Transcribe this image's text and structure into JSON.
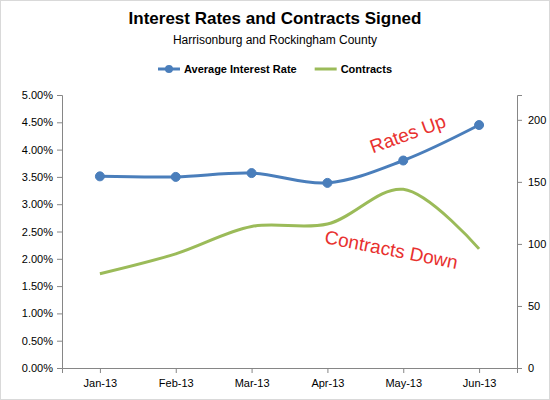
{
  "chart_data": {
    "type": "line",
    "title": "Interest Rates and Contracts Signed",
    "subtitle": "Harrisonburg and Rockingham County",
    "categories": [
      "Jan-13",
      "Feb-13",
      "Mar-13",
      "Apr-13",
      "May-13",
      "Jun-13"
    ],
    "series": [
      {
        "name": "Average Interest Rate",
        "color": "#4a7ebb",
        "values": [
          3.51,
          3.5,
          3.57,
          3.39,
          3.8,
          4.45
        ],
        "marker": "circle",
        "line_style": "smooth"
      },
      {
        "name": "Contracts",
        "color": "#9bbb59",
        "values": [
          76,
          92,
          114,
          116,
          144,
          96
        ],
        "axis": "y2",
        "marker": "none",
        "line_style": "smooth"
      }
    ],
    "ylim": [
      0,
      5
    ],
    "yticks": [
      {
        "value": 0,
        "label": "0.00%"
      },
      {
        "value": 0.5,
        "label": "0.50%"
      },
      {
        "value": 1,
        "label": "1.00%"
      },
      {
        "value": 1.5,
        "label": "1.50%"
      },
      {
        "value": 2,
        "label": "2.00%"
      },
      {
        "value": 2.5,
        "label": "2.50%"
      },
      {
        "value": 3,
        "label": "3.00%"
      },
      {
        "value": 3.5,
        "label": "3.50%"
      },
      {
        "value": 4,
        "label": "4.00%"
      },
      {
        "value": 4.5,
        "label": "4.50%"
      },
      {
        "value": 5,
        "label": "5.00%"
      }
    ],
    "y2lim": [
      0,
      220
    ],
    "y2ticks": [
      0,
      50,
      100,
      150,
      200
    ],
    "legend": "top",
    "grid": false,
    "annotations": [
      {
        "text": "Rates Up",
        "color": "#e8312f"
      },
      {
        "text": "Contracts Down",
        "color": "#e8312f"
      }
    ]
  }
}
